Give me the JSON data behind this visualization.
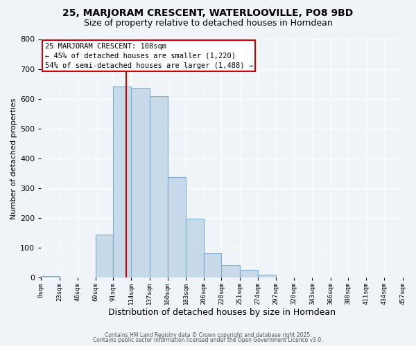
{
  "title": "25, MARJORAM CRESCENT, WATERLOOVILLE, PO8 9BD",
  "subtitle": "Size of property relative to detached houses in Horndean",
  "xlabel": "Distribution of detached houses by size in Horndean",
  "ylabel": "Number of detached properties",
  "bar_color": "#c8daea",
  "bar_edge_color": "#7aafd4",
  "background_color": "#f0f4f8",
  "bin_edges": [
    0,
    23,
    46,
    69,
    91,
    114,
    137,
    160,
    183,
    206,
    228,
    251,
    274,
    297,
    320,
    343,
    366,
    388,
    411,
    434,
    457
  ],
  "bin_labels": [
    "0sqm",
    "23sqm",
    "46sqm",
    "69sqm",
    "91sqm",
    "114sqm",
    "137sqm",
    "160sqm",
    "183sqm",
    "206sqm",
    "228sqm",
    "251sqm",
    "274sqm",
    "297sqm",
    "320sqm",
    "343sqm",
    "366sqm",
    "388sqm",
    "411sqm",
    "434sqm",
    "457sqm"
  ],
  "counts": [
    5,
    0,
    0,
    145,
    640,
    637,
    608,
    337,
    198,
    82,
    42,
    25,
    10,
    0,
    0,
    0,
    0,
    0,
    0,
    0
  ],
  "vline_x": 108,
  "vline_color": "#cc0000",
  "annotation_line1": "25 MARJORAM CRESCENT: 108sqm",
  "annotation_line2": "← 45% of detached houses are smaller (1,220)",
  "annotation_line3": "54% of semi-detached houses are larger (1,488) →",
  "annotation_box_color": "#ffffff",
  "annotation_box_edge_color": "#cc0000",
  "ylim": [
    0,
    800
  ],
  "yticks": [
    0,
    100,
    200,
    300,
    400,
    500,
    600,
    700,
    800
  ],
  "footer1": "Contains HM Land Registry data © Crown copyright and database right 2025.",
  "footer2": "Contains public sector information licensed under the Open Government Licence v3.0."
}
